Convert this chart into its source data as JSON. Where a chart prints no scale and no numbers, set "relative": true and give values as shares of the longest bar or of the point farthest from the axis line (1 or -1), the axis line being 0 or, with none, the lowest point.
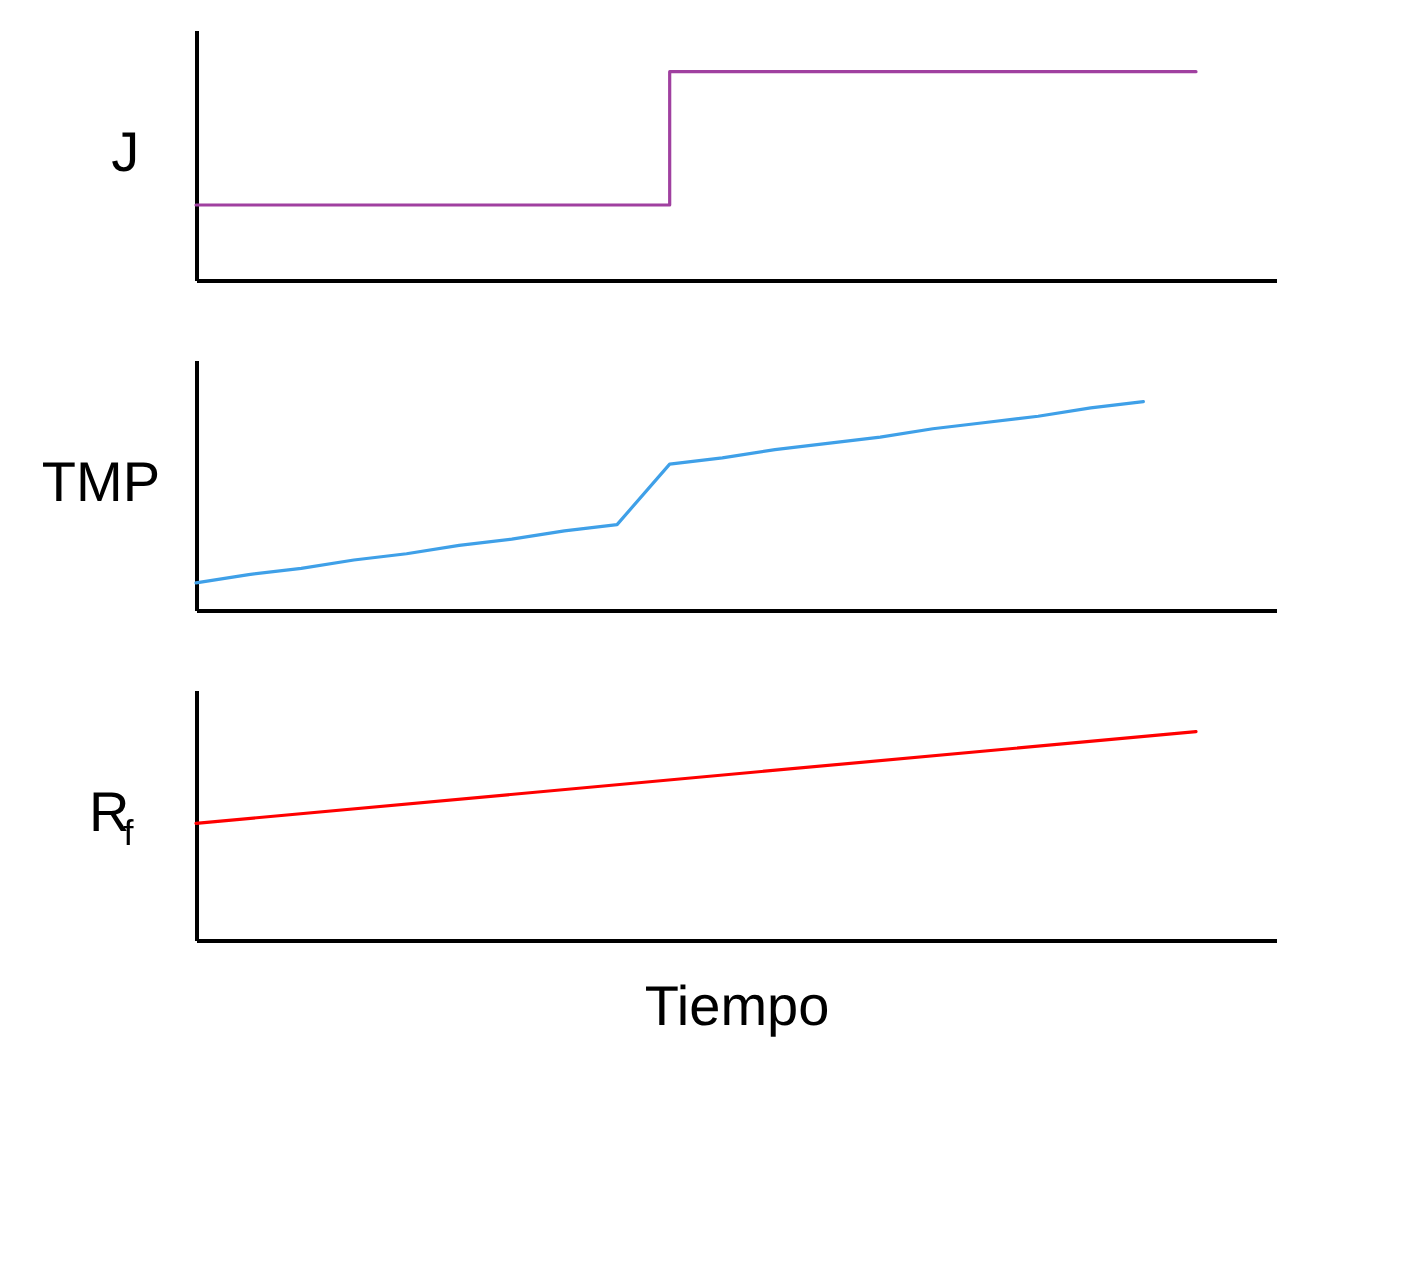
{
  "chart_data": [
    {
      "type": "step",
      "relative": true,
      "ylabel": "J",
      "categories": [
        null,
        null,
        null,
        null,
        null,
        null,
        null,
        null,
        null,
        null,
        null,
        null,
        null,
        null,
        null,
        null,
        null,
        null,
        null,
        null
      ],
      "series": [
        {
          "color": "#a040a0",
          "values": [
            0.36,
            0.36,
            0.36,
            0.36,
            0.36,
            0.36,
            0.36,
            0.36,
            0.36,
            1,
            1,
            1,
            1,
            1,
            1,
            1,
            1,
            1,
            1,
            1
          ]
        }
      ]
    },
    {
      "type": "line",
      "relative": true,
      "ylabel": "TMP",
      "categories": [
        null,
        null,
        null,
        null,
        null,
        null,
        null,
        null,
        null,
        null,
        null,
        null,
        null,
        null,
        null,
        null,
        null,
        null,
        null,
        null
      ],
      "series": [
        {
          "color": "#3fa0e8",
          "values": [
            0.13,
            0.17,
            0.2,
            0.24,
            0.27,
            0.31,
            0.34,
            0.38,
            0.41,
            0.7,
            0.73,
            0.77,
            0.8,
            0.83,
            0.87,
            0.9,
            0.93,
            0.97,
            1,
            null
          ]
        }
      ]
    },
    {
      "type": "line",
      "relative": true,
      "ylabel": "R$_{f}$",
      "xlabel": "Tiempo",
      "categories": [
        null,
        null
      ],
      "series": [
        {
          "color": "#ff0000",
          "values": [
            0.56,
            1
          ]
        }
      ]
    }
  ]
}
